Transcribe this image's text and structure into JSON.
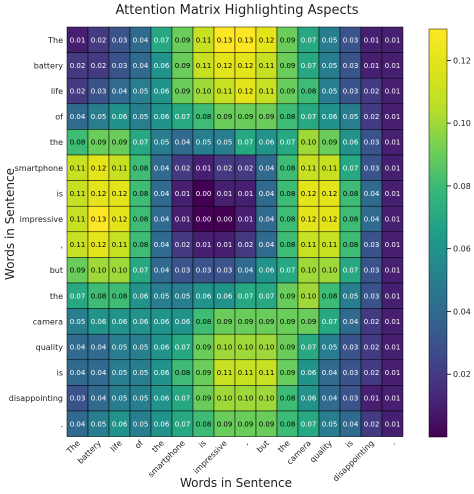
{
  "chart_data": {
    "type": "heatmap",
    "title": "Attention Matrix Highlighting Aspects",
    "xlabel": "Words in Sentence",
    "ylabel": "Words in Sentence",
    "x_labels": [
      "The",
      "battery",
      "life",
      "of",
      "the",
      "smartphone",
      "is",
      "impressive",
      ",",
      "but",
      "the",
      "camera",
      "quality",
      "is",
      "disappointing",
      "."
    ],
    "y_labels": [
      "The",
      "battery",
      "life",
      "of",
      "the",
      "smartphone",
      "is",
      "impressive",
      ",",
      "but",
      "the",
      "camera",
      "quality",
      "is",
      "disappointing",
      "."
    ],
    "values": [
      [
        0.01,
        0.02,
        0.03,
        0.04,
        0.07,
        0.09,
        0.11,
        0.13,
        0.13,
        0.12,
        0.09,
        0.07,
        0.05,
        0.03,
        0.01,
        0.01
      ],
      [
        0.02,
        0.02,
        0.03,
        0.04,
        0.06,
        0.09,
        0.11,
        0.12,
        0.12,
        0.11,
        0.09,
        0.07,
        0.05,
        0.03,
        0.01,
        0.01
      ],
      [
        0.02,
        0.03,
        0.04,
        0.05,
        0.06,
        0.09,
        0.1,
        0.11,
        0.12,
        0.11,
        0.09,
        0.08,
        0.05,
        0.03,
        0.02,
        0.01
      ],
      [
        0.04,
        0.05,
        0.06,
        0.05,
        0.06,
        0.07,
        0.08,
        0.09,
        0.09,
        0.09,
        0.08,
        0.07,
        0.06,
        0.05,
        0.02,
        0.01
      ],
      [
        0.08,
        0.09,
        0.09,
        0.07,
        0.05,
        0.04,
        0.05,
        0.05,
        0.07,
        0.06,
        0.07,
        0.1,
        0.09,
        0.06,
        0.03,
        0.01
      ],
      [
        0.11,
        0.12,
        0.11,
        0.08,
        0.04,
        0.02,
        0.01,
        0.02,
        0.02,
        0.04,
        0.08,
        0.11,
        0.11,
        0.07,
        0.03,
        0.01
      ],
      [
        0.11,
        0.12,
        0.12,
        0.08,
        0.04,
        0.01,
        0.0,
        0.01,
        0.01,
        0.04,
        0.08,
        0.12,
        0.12,
        0.08,
        0.04,
        0.01
      ],
      [
        0.11,
        0.13,
        0.12,
        0.08,
        0.04,
        0.01,
        0.0,
        0.0,
        0.01,
        0.04,
        0.08,
        0.12,
        0.12,
        0.08,
        0.04,
        0.01
      ],
      [
        0.11,
        0.12,
        0.11,
        0.08,
        0.04,
        0.02,
        0.01,
        0.01,
        0.02,
        0.04,
        0.08,
        0.11,
        0.11,
        0.08,
        0.03,
        0.01
      ],
      [
        0.09,
        0.1,
        0.1,
        0.07,
        0.04,
        0.03,
        0.03,
        0.03,
        0.04,
        0.06,
        0.07,
        0.1,
        0.1,
        0.07,
        0.03,
        0.01
      ],
      [
        0.07,
        0.08,
        0.08,
        0.06,
        0.05,
        0.05,
        0.06,
        0.06,
        0.07,
        0.07,
        0.09,
        0.1,
        0.08,
        0.05,
        0.03,
        0.01
      ],
      [
        0.05,
        0.06,
        0.06,
        0.06,
        0.06,
        0.06,
        0.08,
        0.09,
        0.09,
        0.09,
        0.09,
        0.09,
        0.07,
        0.04,
        0.02,
        0.01
      ],
      [
        0.04,
        0.04,
        0.05,
        0.05,
        0.06,
        0.07,
        0.09,
        0.1,
        0.1,
        0.1,
        0.09,
        0.07,
        0.05,
        0.03,
        0.02,
        0.01
      ],
      [
        0.04,
        0.04,
        0.05,
        0.05,
        0.06,
        0.08,
        0.09,
        0.11,
        0.11,
        0.11,
        0.09,
        0.06,
        0.04,
        0.03,
        0.02,
        0.01
      ],
      [
        0.03,
        0.04,
        0.05,
        0.05,
        0.06,
        0.07,
        0.09,
        0.1,
        0.1,
        0.1,
        0.08,
        0.06,
        0.04,
        0.03,
        0.01,
        0.01
      ],
      [
        0.04,
        0.05,
        0.06,
        0.05,
        0.06,
        0.07,
        0.08,
        0.09,
        0.09,
        0.09,
        0.08,
        0.07,
        0.05,
        0.04,
        0.02,
        0.01
      ]
    ],
    "vmin": 0.0,
    "vmax": 0.13,
    "colormap": "viridis",
    "colorbar_ticks": [
      "0.02",
      "0.04",
      "0.06",
      "0.08",
      "0.10",
      "0.12"
    ],
    "colorbar_tick_values": [
      0.02,
      0.04,
      0.06,
      0.08,
      0.1,
      0.12
    ],
    "annotation_format": "2 decimals",
    "cell_border_color": "#000000"
  }
}
